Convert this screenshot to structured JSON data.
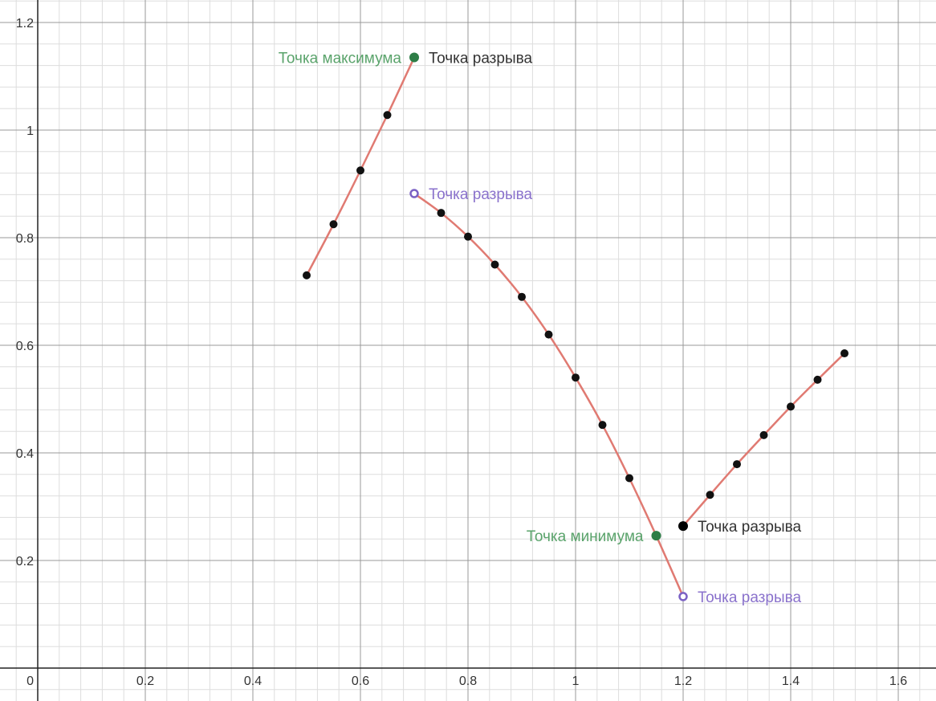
{
  "chart_data": {
    "type": "scatter",
    "title": "",
    "xlabel": "",
    "ylabel": "",
    "xlim": [
      -0.05,
      1.675
    ],
    "ylim": [
      -0.06,
      1.24
    ],
    "grid": true,
    "x_ticks": [
      {
        "value": 0.2,
        "label": "0.2"
      },
      {
        "value": 0.4,
        "label": "0.4"
      },
      {
        "value": 0.6,
        "label": "0.6"
      },
      {
        "value": 0.8,
        "label": "0.8"
      },
      {
        "value": 1.0,
        "label": "1"
      },
      {
        "value": 1.2,
        "label": "1.2"
      },
      {
        "value": 1.4,
        "label": "1.4"
      },
      {
        "value": 1.6,
        "label": "1.6"
      }
    ],
    "y_ticks": [
      {
        "value": 0.2,
        "label": "0.2"
      },
      {
        "value": 0.4,
        "label": "0.4"
      },
      {
        "value": 0.6,
        "label": "0.6"
      },
      {
        "value": 0.8,
        "label": "0.8"
      },
      {
        "value": 1.0,
        "label": "1"
      },
      {
        "value": 1.2,
        "label": "1.2"
      }
    ],
    "origin_label": "0",
    "series": [
      {
        "color": "#e07a72",
        "points": [
          [
            0.5,
            0.73
          ],
          [
            0.55,
            0.825
          ],
          [
            0.6,
            0.925
          ],
          [
            0.65,
            1.028
          ],
          [
            0.7,
            1.135
          ]
        ]
      },
      {
        "color": "#e07a72",
        "points": [
          [
            0.7,
            0.882
          ],
          [
            0.75,
            0.846
          ],
          [
            0.8,
            0.802
          ],
          [
            0.85,
            0.75
          ],
          [
            0.9,
            0.69
          ],
          [
            0.95,
            0.62
          ],
          [
            1.0,
            0.54
          ],
          [
            1.05,
            0.452
          ],
          [
            1.1,
            0.353
          ],
          [
            1.15,
            0.246
          ],
          [
            1.2,
            0.133
          ]
        ]
      },
      {
        "color": "#e07a72",
        "points": [
          [
            1.2,
            0.264
          ],
          [
            1.25,
            0.322
          ],
          [
            1.3,
            0.379
          ],
          [
            1.35,
            0.433
          ],
          [
            1.4,
            0.486
          ],
          [
            1.45,
            0.536
          ],
          [
            1.5,
            0.585
          ]
        ]
      }
    ],
    "markers": [
      {
        "x": 0.5,
        "y": 0.73
      },
      {
        "x": 0.55,
        "y": 0.825
      },
      {
        "x": 0.6,
        "y": 0.925
      },
      {
        "x": 0.65,
        "y": 1.028
      },
      {
        "x": 0.75,
        "y": 0.846
      },
      {
        "x": 0.8,
        "y": 0.802
      },
      {
        "x": 0.85,
        "y": 0.75
      },
      {
        "x": 0.9,
        "y": 0.69
      },
      {
        "x": 0.95,
        "y": 0.62
      },
      {
        "x": 1.0,
        "y": 0.54
      },
      {
        "x": 1.05,
        "y": 0.452
      },
      {
        "x": 1.1,
        "y": 0.353
      },
      {
        "x": 1.25,
        "y": 0.322
      },
      {
        "x": 1.3,
        "y": 0.379
      },
      {
        "x": 1.35,
        "y": 0.433
      },
      {
        "x": 1.4,
        "y": 0.486
      },
      {
        "x": 1.45,
        "y": 0.536
      },
      {
        "x": 1.5,
        "y": 0.585
      }
    ],
    "special_points": [
      {
        "x": 0.7,
        "y": 1.135,
        "style": "filled",
        "color": "#2d7d46"
      },
      {
        "x": 0.7,
        "y": 0.882,
        "style": "open",
        "color": "#7b61c4"
      },
      {
        "x": 1.15,
        "y": 0.246,
        "style": "filled",
        "color": "#2d7d46"
      },
      {
        "x": 1.2,
        "y": 0.264,
        "style": "filled",
        "color": "#000000"
      },
      {
        "x": 1.2,
        "y": 0.133,
        "style": "open",
        "color": "#7b61c4"
      }
    ],
    "annotations": [
      {
        "text": "Точка максимума",
        "x": 0.7,
        "y": 1.135,
        "anchor": "end",
        "color": "#5aa36b"
      },
      {
        "text": "Точка разрыва",
        "x": 0.7,
        "y": 1.135,
        "anchor": "start",
        "color": "#333333"
      },
      {
        "text": "Точка разрыва",
        "x": 0.7,
        "y": 0.882,
        "anchor": "start",
        "color": "#8a72cc"
      },
      {
        "text": "Точка минимума",
        "x": 1.15,
        "y": 0.246,
        "anchor": "end",
        "color": "#5aa36b"
      },
      {
        "text": "Точка разрыва",
        "x": 1.2,
        "y": 0.264,
        "anchor": "start",
        "color": "#333333"
      },
      {
        "text": "Точка разрыва",
        "x": 1.2,
        "y": 0.133,
        "anchor": "start",
        "color": "#8a72cc"
      }
    ],
    "colors": {
      "curve": "#e07a72",
      "marker": "#111111",
      "grid_major": "#999999",
      "grid_minor": "#dddddd",
      "axis": "#222222"
    }
  }
}
